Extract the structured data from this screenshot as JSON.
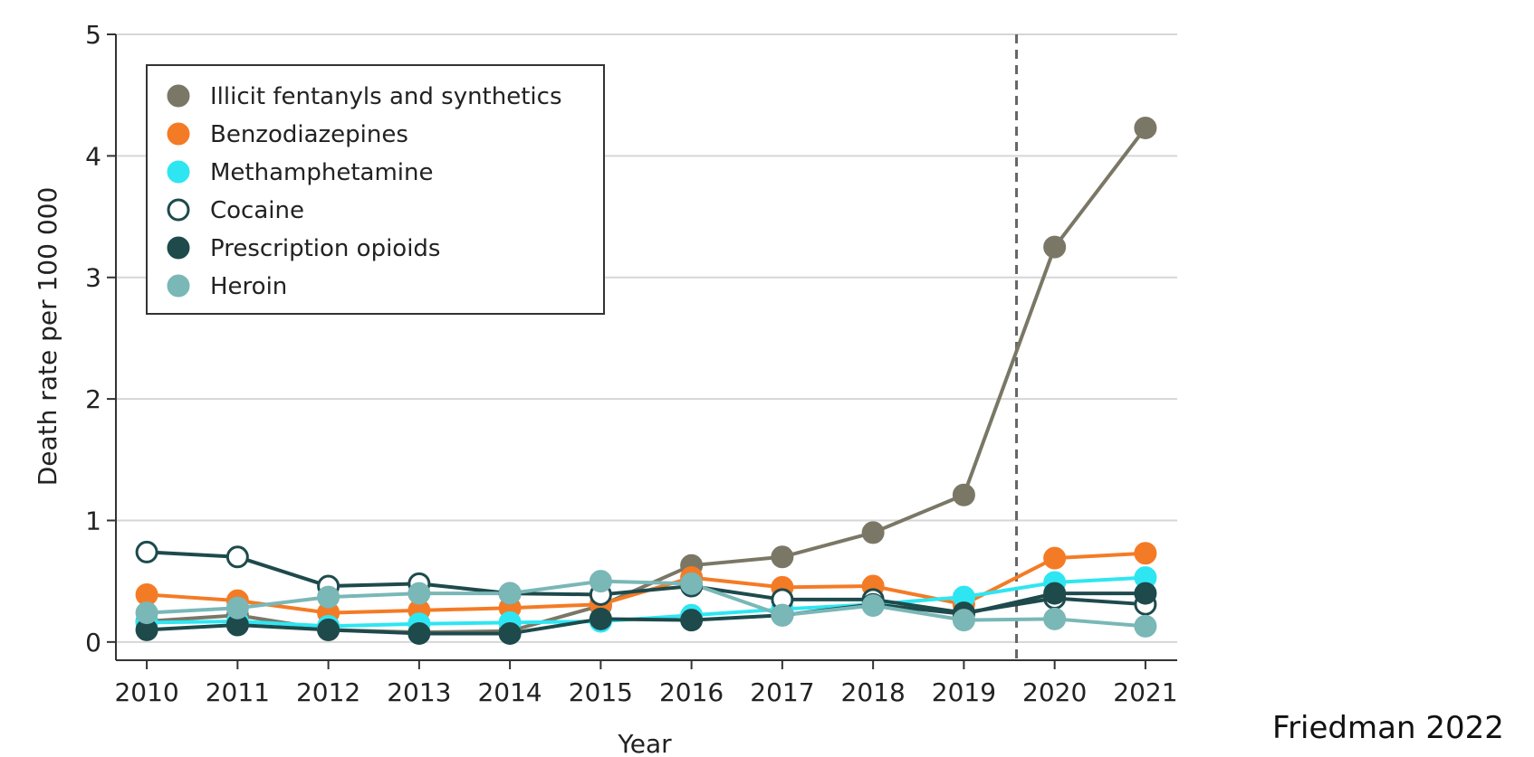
{
  "citation": "Friedman 2022",
  "colors": {
    "grid": "#d6d6d6",
    "axis": "#333333",
    "dashed": "#666666"
  },
  "chart_data": {
    "type": "line",
    "xlabel": "Year",
    "ylabel": "Death rate per 100 000",
    "x": [
      2010,
      2011,
      2012,
      2013,
      2014,
      2015,
      2016,
      2017,
      2018,
      2019,
      2020,
      2021
    ],
    "xlim": [
      2009.66,
      2021.35
    ],
    "ylim": [
      -0.15,
      5
    ],
    "yticks": [
      0,
      1,
      2,
      3,
      4,
      5
    ],
    "grid": true,
    "legend_position": "top-left",
    "reference_line_x": 2019.58,
    "series": [
      {
        "name": "Illicit fentanyls and synthetics",
        "color": "#7b7766",
        "fill": "#7b7766",
        "line": "#7b7766",
        "values": [
          0.17,
          0.22,
          0.1,
          0.08,
          0.09,
          0.3,
          0.63,
          0.7,
          0.9,
          1.21,
          3.25,
          4.23
        ]
      },
      {
        "name": "Benzodiazepines",
        "color": "#f47b25",
        "fill": "#f47b25",
        "line": "#f47b25",
        "values": [
          0.39,
          0.34,
          0.24,
          0.26,
          0.28,
          0.31,
          0.53,
          0.45,
          0.46,
          0.31,
          0.69,
          0.73
        ]
      },
      {
        "name": "Methamphetamine",
        "color": "#2ee6f2",
        "fill": "#2ee6f2",
        "line": "#2ee6f2",
        "values": [
          0.16,
          0.17,
          0.13,
          0.15,
          0.16,
          0.17,
          0.22,
          0.27,
          0.31,
          0.37,
          0.49,
          0.53
        ]
      },
      {
        "name": "Cocaine",
        "color": "#1e4a4c",
        "fill": "#ffffff",
        "line": "#1e4a4c",
        "values": [
          0.74,
          0.7,
          0.46,
          0.48,
          0.4,
          0.39,
          0.46,
          0.35,
          0.35,
          0.24,
          0.36,
          0.31
        ]
      },
      {
        "name": "Prescription opioids",
        "color": "#1e4a4c",
        "fill": "#1e4a4c",
        "line": "#1e4a4c",
        "values": [
          0.1,
          0.14,
          0.1,
          0.07,
          0.07,
          0.19,
          0.18,
          0.22,
          0.31,
          0.23,
          0.4,
          0.4
        ]
      },
      {
        "name": "Heroin",
        "color": "#7ab7b7",
        "fill": "#7ab7b7",
        "line": "#7ab7b7",
        "values": [
          0.24,
          0.28,
          0.37,
          0.4,
          0.4,
          0.5,
          0.48,
          0.22,
          0.3,
          0.18,
          0.19,
          0.13
        ]
      }
    ]
  }
}
